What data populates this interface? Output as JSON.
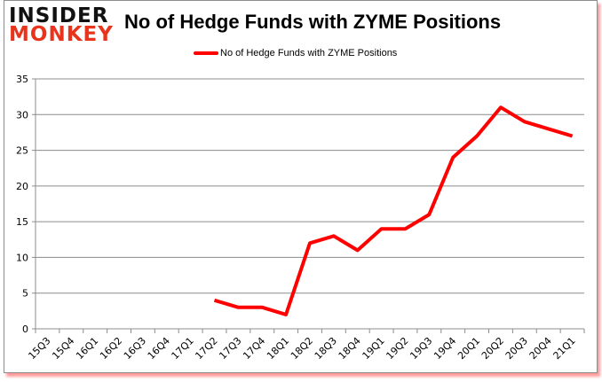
{
  "brand": {
    "line1": "INSIDER",
    "line2": "MONKEY"
  },
  "chart_data": {
    "type": "line",
    "title": "No of Hedge Funds with ZYME Positions",
    "xlabel": "",
    "ylabel": "",
    "ylim": [
      0,
      35
    ],
    "yticks": [
      0,
      5,
      10,
      15,
      20,
      25,
      30,
      35
    ],
    "grid": true,
    "legend_position": "top",
    "categories": [
      "15Q3",
      "15Q4",
      "16Q1",
      "16Q2",
      "16Q3",
      "16Q4",
      "17Q1",
      "17Q2",
      "17Q3",
      "17Q4",
      "18Q1",
      "18Q2",
      "18Q3",
      "18Q4",
      "19Q1",
      "19Q2",
      "19Q3",
      "19Q4",
      "20Q1",
      "20Q2",
      "20Q3",
      "20Q4",
      "21Q1"
    ],
    "series": [
      {
        "name": "No of Hedge Funds with ZYME Positions",
        "color": "#ff0000",
        "values": [
          null,
          null,
          null,
          null,
          null,
          null,
          null,
          4,
          3,
          3,
          2,
          12,
          13,
          11,
          14,
          14,
          16,
          24,
          27,
          31,
          29,
          28,
          27
        ]
      }
    ]
  }
}
